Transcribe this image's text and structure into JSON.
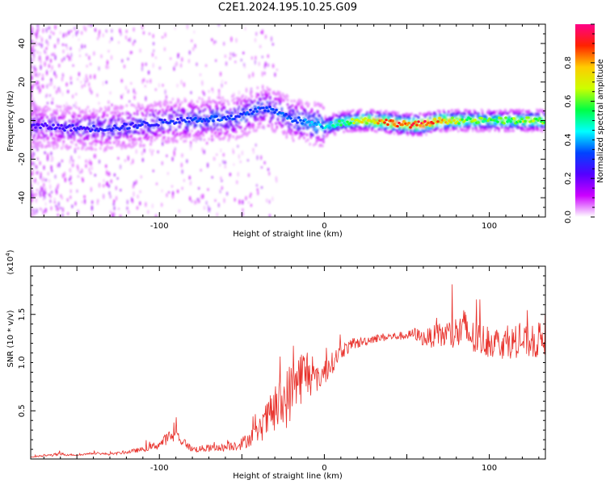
{
  "title": "C2E1.2024.195.10.25.G09",
  "colors": {
    "snr_line": "#e8302a",
    "axis": "#000000",
    "background": "#ffffff"
  },
  "chart_data": [
    {
      "type": "heatmap",
      "title": "C2E1.2024.195.10.25.G09",
      "xlabel": "Height of straight line (km)",
      "ylabel": "Frequency (Hz)",
      "xlim": [
        -178,
        134
      ],
      "ylim": [
        -50,
        50
      ],
      "x_ticks": [
        -100,
        0,
        100
      ],
      "y_ticks": [
        -40,
        -20,
        0,
        20,
        40
      ],
      "colorbar": {
        "label": "Normalized spectral amplitude",
        "range": [
          0,
          1
        ],
        "ticks": [
          "0.0",
          "0.2",
          "0.4",
          "0.6",
          "0.8"
        ],
        "colormap": [
          "#ffffff",
          "#cc00ff",
          "#5500ff",
          "#0044ff",
          "#00ffff",
          "#00ff44",
          "#ccff00",
          "#ffcc00",
          "#ff2200",
          "#ff0088"
        ]
      },
      "ridge_center": [
        [
          -170,
          -3
        ],
        [
          -150,
          -4
        ],
        [
          -130,
          -4
        ],
        [
          -110,
          -2
        ],
        [
          -90,
          0
        ],
        [
          -70,
          1
        ],
        [
          -55,
          1
        ],
        [
          -45,
          4
        ],
        [
          -38,
          7
        ],
        [
          -30,
          5
        ],
        [
          -20,
          1
        ],
        [
          -10,
          -1
        ],
        [
          0,
          -3
        ],
        [
          10,
          -1
        ],
        [
          20,
          0
        ],
        [
          30,
          0
        ],
        [
          40,
          -1
        ],
        [
          50,
          -2
        ],
        [
          60,
          -2
        ],
        [
          70,
          0
        ],
        [
          80,
          0
        ],
        [
          90,
          0
        ],
        [
          100,
          0
        ],
        [
          110,
          0
        ],
        [
          120,
          0
        ],
        [
          134,
          0
        ]
      ],
      "ridge_peak_amplitude": [
        [
          -170,
          0.25
        ],
        [
          -130,
          0.3
        ],
        [
          -100,
          0.3
        ],
        [
          -70,
          0.35
        ],
        [
          -40,
          0.35
        ],
        [
          -20,
          0.35
        ],
        [
          0,
          0.45
        ],
        [
          20,
          0.7
        ],
        [
          40,
          0.9
        ],
        [
          60,
          0.95
        ],
        [
          80,
          0.7
        ],
        [
          100,
          0.6
        ],
        [
          120,
          0.7
        ],
        [
          134,
          0.65
        ]
      ]
    },
    {
      "type": "line",
      "xlabel": "Height of straight line (km)",
      "ylabel": "SNR (10 * v/v)",
      "y_multiplier": "(x10^4)",
      "xlim": [
        -178,
        134
      ],
      "ylim": [
        0,
        2.0
      ],
      "x_ticks": [
        -100,
        0,
        100
      ],
      "y_ticks": [
        "0.5",
        "1.0",
        "1.5"
      ],
      "series": [
        {
          "trend_x": [
            -178,
            -160,
            -150,
            -140,
            -130,
            -120,
            -110,
            -100,
            -95,
            -90,
            -85,
            -80,
            -70,
            -60,
            -50,
            -45,
            -40,
            -35,
            -30,
            -25,
            -20,
            -15,
            -10,
            -5,
            0,
            5,
            10,
            20,
            30,
            40,
            50,
            55,
            60,
            70,
            80,
            85,
            90,
            100,
            110,
            120,
            128,
            134
          ],
          "trend_y": [
            0.02,
            0.05,
            0.04,
            0.06,
            0.05,
            0.07,
            0.1,
            0.15,
            0.22,
            0.25,
            0.17,
            0.1,
            0.11,
            0.12,
            0.16,
            0.22,
            0.28,
            0.4,
            0.5,
            0.58,
            0.7,
            0.85,
            0.9,
            0.82,
            0.9,
            1.0,
            1.12,
            1.2,
            1.25,
            1.27,
            1.28,
            1.3,
            1.25,
            1.28,
            1.3,
            1.35,
            1.25,
            1.22,
            1.2,
            1.22,
            1.2,
            1.3
          ],
          "noise_y": [
            0.01,
            0.03,
            0.01,
            0.02,
            0.02,
            0.03,
            0.05,
            0.08,
            0.12,
            0.15,
            0.08,
            0.06,
            0.07,
            0.07,
            0.12,
            0.16,
            0.2,
            0.35,
            0.45,
            0.55,
            0.6,
            0.55,
            0.5,
            0.25,
            0.25,
            0.2,
            0.15,
            0.1,
            0.08,
            0.08,
            0.08,
            0.12,
            0.15,
            0.25,
            0.35,
            0.4,
            0.35,
            0.3,
            0.3,
            0.3,
            0.3,
            0.4
          ]
        }
      ]
    }
  ]
}
